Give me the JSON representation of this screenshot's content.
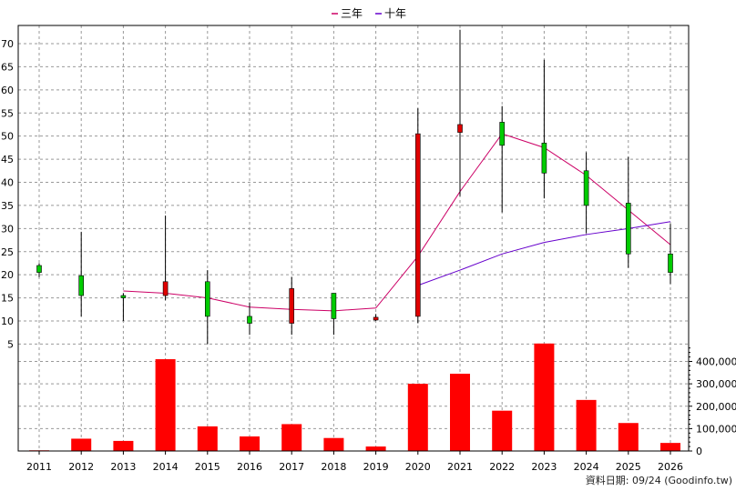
{
  "chart_data": {
    "type": "candlestick-volume",
    "legend": [
      {
        "label": "三年",
        "color": "#cc0066"
      },
      {
        "label": "十年",
        "color": "#6600cc"
      }
    ],
    "categories": [
      "2011",
      "2012",
      "2013",
      "2014",
      "2015",
      "2016",
      "2017",
      "2018",
      "2019",
      "2020",
      "2021",
      "2022",
      "2023",
      "2024",
      "2025",
      "2026"
    ],
    "price_axis": {
      "ylim": [
        0,
        73
      ],
      "ticks": [
        5,
        10,
        15,
        20,
        25,
        30,
        35,
        40,
        45,
        50,
        55,
        60,
        65,
        70
      ]
    },
    "volume_axis": {
      "ylim": [
        0,
        480000
      ],
      "ticks": [
        0,
        100000,
        200000,
        300000,
        400000
      ],
      "tick_labels": [
        "0",
        "100,000",
        "200,000",
        "300,000",
        "400,000"
      ]
    },
    "candles": [
      {
        "year": "2011",
        "open": 20.5,
        "close": 22.0,
        "high": 22.5,
        "low": 19.5
      },
      {
        "year": "2012",
        "open": 15.5,
        "close": 19.8,
        "high": 29.3,
        "low": 11.0
      },
      {
        "year": "2013",
        "open": 15.0,
        "close": 15.5,
        "high": 16.0,
        "low": 10.0
      },
      {
        "year": "2014",
        "open": 18.5,
        "close": 15.5,
        "high": 32.8,
        "low": 14.5
      },
      {
        "year": "2015",
        "open": 11.0,
        "close": 18.5,
        "high": 21.0,
        "low": 5.0
      },
      {
        "year": "2016",
        "open": 9.5,
        "close": 11.0,
        "high": 14.0,
        "low": 7.0
      },
      {
        "year": "2017",
        "open": 17.0,
        "close": 9.5,
        "high": 19.5,
        "low": 7.0
      },
      {
        "year": "2018",
        "open": 10.5,
        "close": 16.0,
        "high": 16.0,
        "low": 7.0
      },
      {
        "year": "2019",
        "open": 10.8,
        "close": 10.2,
        "high": 11.5,
        "low": 10.0
      },
      {
        "year": "2020",
        "open": 50.5,
        "close": 11.0,
        "high": 56.0,
        "low": 9.5
      },
      {
        "year": "2021",
        "open": 52.5,
        "close": 50.8,
        "high": 73.0,
        "low": 37.0
      },
      {
        "year": "2022",
        "open": 48.0,
        "close": 53.0,
        "high": 56.5,
        "low": 33.5
      },
      {
        "year": "2023",
        "open": 42.0,
        "close": 48.5,
        "high": 66.5,
        "low": 36.5
      },
      {
        "year": "2024",
        "open": 35.0,
        "close": 42.5,
        "high": 46.5,
        "low": 29.0
      },
      {
        "year": "2025",
        "open": 24.5,
        "close": 35.5,
        "high": 45.5,
        "low": 21.5
      },
      {
        "year": "2026",
        "open": 20.5,
        "close": 24.5,
        "high": 31.0,
        "low": 18.0
      }
    ],
    "series": [
      {
        "name": "三年",
        "color": "#cc0066",
        "points": [
          {
            "x": "2013",
            "y": 16.5
          },
          {
            "x": "2014",
            "y": 16.0
          },
          {
            "x": "2015",
            "y": 15.0
          },
          {
            "x": "2016",
            "y": 13.0
          },
          {
            "x": "2017",
            "y": 12.5
          },
          {
            "x": "2018",
            "y": 12.2
          },
          {
            "x": "2019",
            "y": 12.8
          },
          {
            "x": "2020",
            "y": 24.0
          },
          {
            "x": "2021",
            "y": 38.0
          },
          {
            "x": "2022",
            "y": 50.5
          },
          {
            "x": "2023",
            "y": 47.5
          },
          {
            "x": "2024",
            "y": 41.5
          },
          {
            "x": "2025",
            "y": 34.0
          },
          {
            "x": "2026",
            "y": 26.5
          }
        ]
      },
      {
        "name": "十年",
        "color": "#6600cc",
        "points": [
          {
            "x": "2020",
            "y": 17.7
          },
          {
            "x": "2021",
            "y": 21.0
          },
          {
            "x": "2022",
            "y": 24.5
          },
          {
            "x": "2023",
            "y": 27.0
          },
          {
            "x": "2024",
            "y": 28.7
          },
          {
            "x": "2025",
            "y": 30.0
          },
          {
            "x": "2026",
            "y": 31.5
          }
        ]
      }
    ],
    "volumes": [
      {
        "year": "2011",
        "value": 3000
      },
      {
        "year": "2012",
        "value": 55000
      },
      {
        "year": "2013",
        "value": 45000
      },
      {
        "year": "2014",
        "value": 410000
      },
      {
        "year": "2015",
        "value": 110000
      },
      {
        "year": "2016",
        "value": 65000
      },
      {
        "year": "2017",
        "value": 120000
      },
      {
        "year": "2018",
        "value": 58000
      },
      {
        "year": "2019",
        "value": 20000
      },
      {
        "year": "2020",
        "value": 300000
      },
      {
        "year": "2021",
        "value": 345000
      },
      {
        "year": "2022",
        "value": 180000
      },
      {
        "year": "2023",
        "value": 480000
      },
      {
        "year": "2024",
        "value": 228000
      },
      {
        "year": "2025",
        "value": 125000
      },
      {
        "year": "2026",
        "value": 36000
      }
    ],
    "up_color": "#00cc00",
    "down_color": "#e00000",
    "volume_color": "#ff0000",
    "grid": true
  },
  "footer": {
    "text": "資料日期: 09/24 (Goodinfo.tw)"
  }
}
